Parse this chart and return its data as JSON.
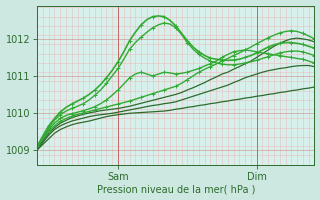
{
  "bg_color": "#cce8e0",
  "plot_bg_color": "#d8f0ec",
  "grid_minor_color": "#e8c0c0",
  "grid_major_color": "#cc6666",
  "line_dark": "#2d6b2d",
  "line_bright": "#33aa33",
  "ylabel_text": "Pression niveau de la mer( hPa )",
  "yticks": [
    1009,
    1010,
    1011,
    1012
  ],
  "xlim": [
    0,
    96
  ],
  "ylim": [
    1008.6,
    1012.9
  ],
  "sam_x": 28,
  "dim_x": 76,
  "series": [
    {
      "x": [
        0,
        2,
        4,
        6,
        8,
        10,
        12,
        14,
        16,
        18,
        20,
        22,
        24,
        26,
        28,
        30,
        32,
        34,
        36,
        38,
        40,
        42,
        44,
        46,
        48,
        50,
        52,
        54,
        56,
        58,
        60,
        62,
        64,
        66,
        68,
        70,
        72,
        74,
        76,
        78,
        80,
        82,
        84,
        86,
        88,
        90,
        92,
        94,
        96
      ],
      "y": [
        1009.0,
        1009.15,
        1009.3,
        1009.45,
        1009.55,
        1009.62,
        1009.68,
        1009.72,
        1009.75,
        1009.78,
        1009.82,
        1009.86,
        1009.9,
        1009.93,
        1009.95,
        1009.97,
        1009.99,
        1010.0,
        1010.01,
        1010.02,
        1010.03,
        1010.04,
        1010.05,
        1010.07,
        1010.1,
        1010.12,
        1010.15,
        1010.17,
        1010.2,
        1010.22,
        1010.25,
        1010.27,
        1010.3,
        1010.32,
        1010.35,
        1010.37,
        1010.4,
        1010.42,
        1010.45,
        1010.47,
        1010.5,
        1010.52,
        1010.55,
        1010.57,
        1010.6,
        1010.62,
        1010.65,
        1010.67,
        1010.7
      ],
      "marker": false,
      "color": "#2d6b2d",
      "lw": 0.9
    },
    {
      "x": [
        0,
        2,
        4,
        6,
        8,
        10,
        12,
        14,
        16,
        18,
        20,
        22,
        24,
        26,
        28,
        30,
        32,
        34,
        36,
        38,
        40,
        42,
        44,
        46,
        48,
        50,
        52,
        54,
        56,
        58,
        60,
        62,
        64,
        66,
        68,
        70,
        72,
        74,
        76,
        78,
        80,
        82,
        84,
        86,
        88,
        90,
        92,
        94,
        96
      ],
      "y": [
        1009.0,
        1009.2,
        1009.4,
        1009.55,
        1009.65,
        1009.72,
        1009.78,
        1009.82,
        1009.86,
        1009.9,
        1009.93,
        1009.95,
        1009.97,
        1009.99,
        1010.02,
        1010.05,
        1010.08,
        1010.11,
        1010.14,
        1010.17,
        1010.2,
        1010.22,
        1010.25,
        1010.27,
        1010.3,
        1010.35,
        1010.4,
        1010.45,
        1010.5,
        1010.55,
        1010.6,
        1010.65,
        1010.7,
        1010.75,
        1010.82,
        1010.88,
        1010.95,
        1011.0,
        1011.05,
        1011.1,
        1011.14,
        1011.17,
        1011.2,
        1011.22,
        1011.25,
        1011.27,
        1011.28,
        1011.28,
        1011.25
      ],
      "marker": false,
      "color": "#2d6b2d",
      "lw": 0.9
    },
    {
      "x": [
        0,
        2,
        4,
        6,
        8,
        10,
        12,
        14,
        16,
        18,
        20,
        22,
        24,
        26,
        28,
        30,
        32,
        34,
        36,
        38,
        40,
        42,
        44,
        46,
        48,
        50,
        52,
        54,
        56,
        58,
        60,
        62,
        64,
        66,
        68,
        70,
        72,
        74,
        76,
        78,
        80,
        82,
        84,
        86,
        88,
        90,
        92,
        94,
        96
      ],
      "y": [
        1009.05,
        1009.25,
        1009.45,
        1009.6,
        1009.72,
        1009.8,
        1009.87,
        1009.92,
        1009.96,
        1010.0,
        1010.03,
        1010.06,
        1010.08,
        1010.1,
        1010.12,
        1010.15,
        1010.18,
        1010.22,
        1010.26,
        1010.3,
        1010.34,
        1010.38,
        1010.42,
        1010.46,
        1010.5,
        1010.55,
        1010.62,
        1010.68,
        1010.75,
        1010.82,
        1010.9,
        1010.97,
        1011.05,
        1011.1,
        1011.18,
        1011.25,
        1011.33,
        1011.4,
        1011.5,
        1011.6,
        1011.7,
        1011.8,
        1011.88,
        1011.95,
        1012.0,
        1012.02,
        1012.0,
        1011.97,
        1011.92
      ],
      "marker": false,
      "color": "#2d6b2d",
      "lw": 0.9
    },
    {
      "x": [
        0,
        2,
        4,
        6,
        8,
        10,
        12,
        14,
        16,
        18,
        20,
        22,
        24,
        26,
        28,
        30,
        32,
        34,
        36,
        38,
        40,
        42,
        44,
        46,
        48,
        50,
        52,
        54,
        56,
        58,
        60,
        62,
        64,
        66,
        68,
        70,
        72,
        74,
        76,
        78,
        80,
        82,
        84,
        86,
        88,
        90,
        92,
        94,
        96
      ],
      "y": [
        1009.1,
        1009.3,
        1009.5,
        1009.65,
        1009.77,
        1009.85,
        1009.91,
        1009.96,
        1010.0,
        1010.04,
        1010.08,
        1010.12,
        1010.16,
        1010.2,
        1010.24,
        1010.28,
        1010.32,
        1010.37,
        1010.42,
        1010.47,
        1010.52,
        1010.57,
        1010.62,
        1010.67,
        1010.72,
        1010.8,
        1010.9,
        1011.0,
        1011.1,
        1011.18,
        1011.25,
        1011.32,
        1011.4,
        1011.47,
        1011.55,
        1011.62,
        1011.7,
        1011.78,
        1011.87,
        1011.95,
        1012.03,
        1012.1,
        1012.16,
        1012.2,
        1012.22,
        1012.2,
        1012.15,
        1012.08,
        1012.0
      ],
      "marker": true,
      "color": "#33aa33",
      "lw": 1.0
    },
    {
      "x": [
        0,
        2,
        4,
        6,
        8,
        10,
        12,
        14,
        16,
        18,
        20,
        22,
        24,
        26,
        28,
        30,
        32,
        34,
        36,
        38,
        40,
        42,
        44,
        46,
        48,
        50,
        52,
        54,
        56,
        58,
        60,
        62,
        64,
        66,
        68,
        70,
        72,
        74,
        76,
        78,
        80,
        82,
        84,
        86,
        88,
        90,
        92,
        94,
        96
      ],
      "y": [
        1009.1,
        1009.32,
        1009.55,
        1009.72,
        1009.85,
        1009.93,
        1009.98,
        1010.02,
        1010.06,
        1010.11,
        1010.17,
        1010.25,
        1010.35,
        1010.48,
        1010.62,
        1010.78,
        1010.95,
        1011.05,
        1011.1,
        1011.05,
        1011.0,
        1011.05,
        1011.1,
        1011.08,
        1011.05,
        1011.07,
        1011.1,
        1011.15,
        1011.2,
        1011.27,
        1011.33,
        1011.4,
        1011.5,
        1011.58,
        1011.65,
        1011.68,
        1011.7,
        1011.68,
        1011.65,
        1011.62,
        1011.6,
        1011.57,
        1011.55,
        1011.52,
        1011.5,
        1011.47,
        1011.45,
        1011.4,
        1011.35
      ],
      "marker": true,
      "color": "#33aa33",
      "lw": 1.0
    },
    {
      "x": [
        0,
        2,
        4,
        6,
        8,
        10,
        12,
        14,
        16,
        18,
        20,
        22,
        24,
        26,
        28,
        30,
        32,
        34,
        36,
        38,
        40,
        42,
        44,
        46,
        48,
        50,
        52,
        54,
        56,
        58,
        60,
        62,
        64,
        66,
        68,
        70,
        72,
        74,
        76,
        78,
        80,
        82,
        84,
        86,
        88,
        90,
        92,
        94,
        96
      ],
      "y": [
        1009.1,
        1009.35,
        1009.6,
        1009.8,
        1009.95,
        1010.05,
        1010.12,
        1010.18,
        1010.25,
        1010.35,
        1010.48,
        1010.62,
        1010.8,
        1011.0,
        1011.2,
        1011.45,
        1011.72,
        1011.9,
        1012.05,
        1012.18,
        1012.3,
        1012.38,
        1012.43,
        1012.4,
        1012.3,
        1012.12,
        1011.9,
        1011.72,
        1011.58,
        1011.48,
        1011.4,
        1011.35,
        1011.32,
        1011.3,
        1011.3,
        1011.32,
        1011.35,
        1011.38,
        1011.42,
        1011.47,
        1011.52,
        1011.57,
        1011.62,
        1011.65,
        1011.67,
        1011.67,
        1011.65,
        1011.6,
        1011.55
      ],
      "marker": true,
      "color": "#33aa33",
      "lw": 1.0
    },
    {
      "x": [
        0,
        2,
        4,
        6,
        8,
        10,
        12,
        14,
        16,
        18,
        20,
        22,
        24,
        26,
        28,
        30,
        32,
        34,
        36,
        38,
        40,
        42,
        44,
        46,
        48,
        50,
        52,
        54,
        56,
        58,
        60,
        62,
        64,
        66,
        68,
        70,
        72,
        74,
        76,
        78,
        80,
        82,
        84,
        86,
        88,
        90,
        92,
        94,
        96
      ],
      "y": [
        1009.1,
        1009.38,
        1009.65,
        1009.85,
        1010.02,
        1010.15,
        1010.24,
        1010.32,
        1010.4,
        1010.5,
        1010.62,
        1010.77,
        1010.95,
        1011.15,
        1011.38,
        1011.65,
        1011.95,
        1012.18,
        1012.38,
        1012.52,
        1012.6,
        1012.62,
        1012.6,
        1012.5,
        1012.35,
        1012.15,
        1011.95,
        1011.78,
        1011.65,
        1011.55,
        1011.48,
        1011.45,
        1011.43,
        1011.42,
        1011.43,
        1011.45,
        1011.5,
        1011.55,
        1011.62,
        1011.7,
        1011.78,
        1011.84,
        1011.88,
        1011.9,
        1011.9,
        1011.88,
        1011.85,
        1011.8,
        1011.75
      ],
      "marker": true,
      "color": "#33aa33",
      "lw": 1.2
    }
  ]
}
